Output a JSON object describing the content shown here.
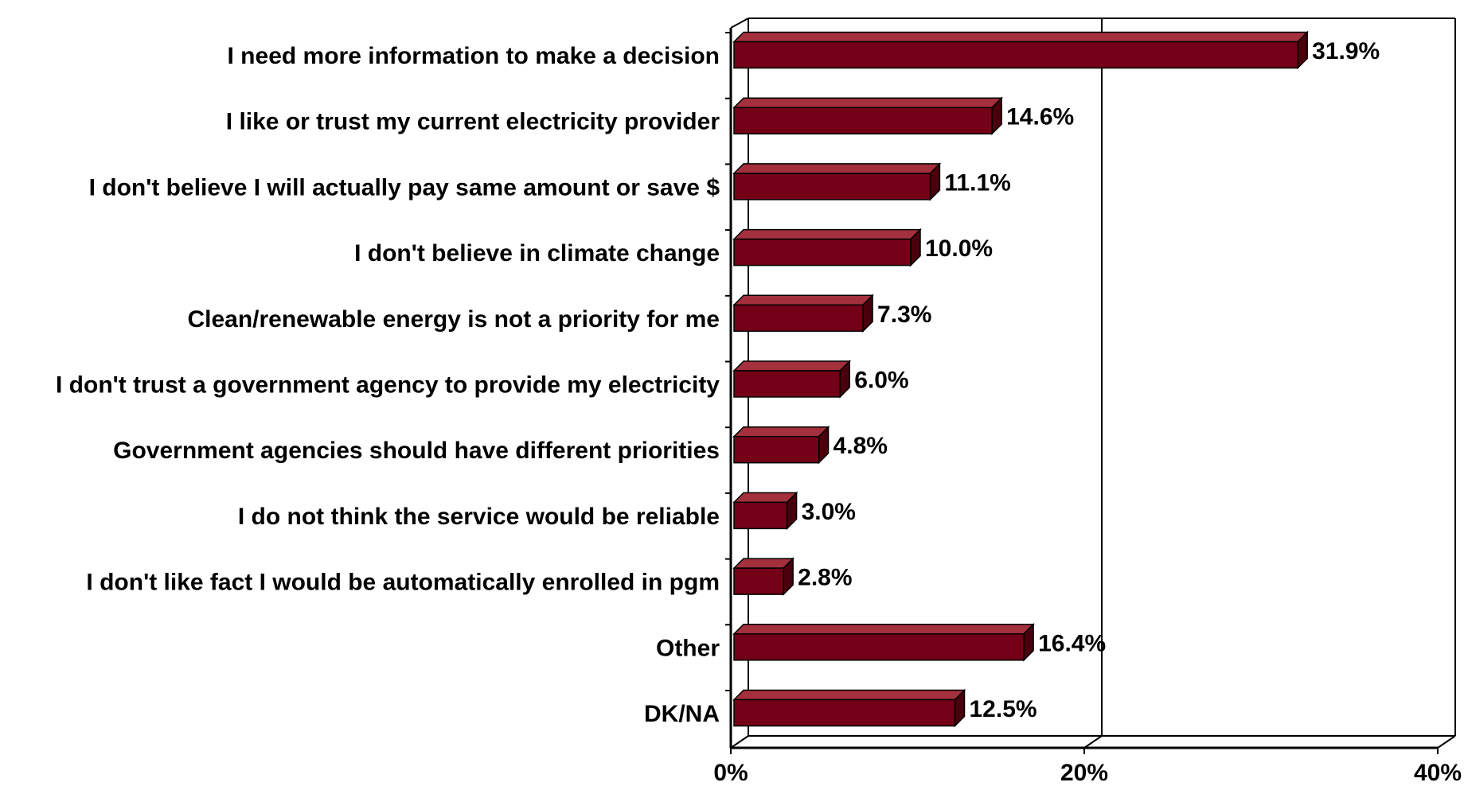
{
  "chart_data": {
    "type": "bar",
    "orientation": "horizontal",
    "style": "3d",
    "categories": [
      "I need more information to make a decision",
      "I like or trust my current electricity provider",
      "I don't believe I will actually pay same amount or save $",
      "I don't believe in climate change",
      "Clean/renewable energy is not a priority for me",
      "I don't trust a government agency to provide my electricity",
      "Government agencies should have different priorities",
      "I do not think the service would be reliable",
      "I don't like fact I would be automatically enrolled in pgm",
      "Other",
      "DK/NA"
    ],
    "values": [
      31.9,
      14.6,
      11.1,
      10.0,
      7.3,
      6.0,
      4.8,
      3.0,
      2.8,
      16.4,
      12.5
    ],
    "value_labels": [
      "31.9%",
      "14.6%",
      "11.1%",
      "10.0%",
      "7.3%",
      "6.0%",
      "4.8%",
      "3.0%",
      "2.8%",
      "16.4%",
      "12.5%"
    ],
    "xlim": [
      0,
      40
    ],
    "xticks": [
      0,
      20,
      40
    ],
    "xtick_labels": [
      "0%",
      "20%",
      "40%"
    ],
    "grid": "vertical",
    "legend": "none",
    "colors": {
      "bar_front": "#730016",
      "bar_top": "#a3303c",
      "bar_side": "#4a000c",
      "axis": "#000000"
    }
  }
}
